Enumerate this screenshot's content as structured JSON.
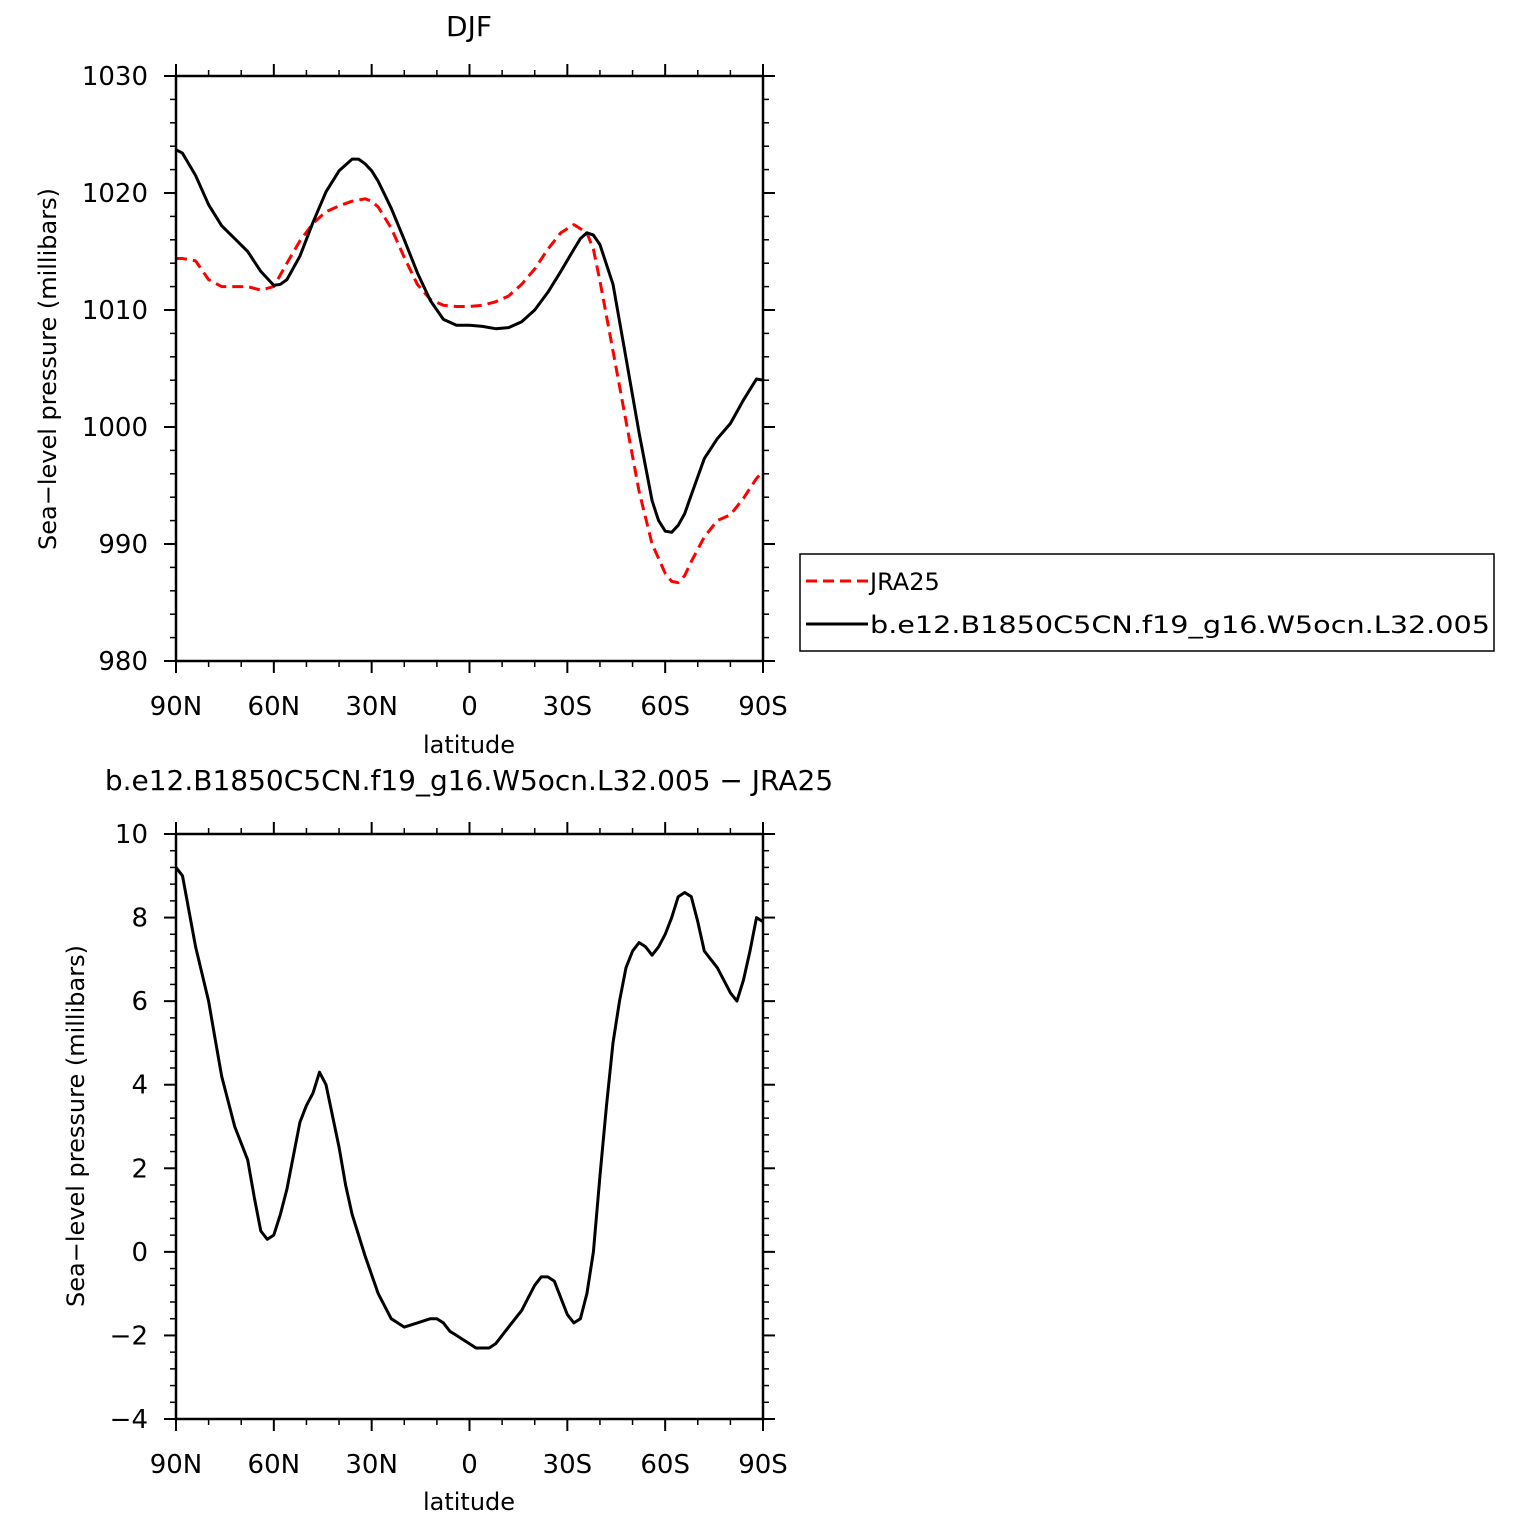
{
  "chart_data": [
    {
      "type": "line",
      "title": "DJF",
      "xlabel": "latitude",
      "ylabel": "Sea−level pressure (millibars)",
      "x_tick_values": [
        90,
        60,
        30,
        0,
        -30,
        -60,
        -90
      ],
      "x_tick_labels": [
        "90N",
        "60N",
        "30N",
        "0",
        "30S",
        "60S",
        "90S"
      ],
      "xlim": [
        90,
        -90
      ],
      "ylim": [
        980,
        1030
      ],
      "y_tick_values": [
        980,
        990,
        1000,
        1010,
        1020,
        1030
      ],
      "y_tick_labels": [
        "980",
        "990",
        "1000",
        "1010",
        "1020",
        "1030"
      ],
      "grid": false,
      "legend_position": "right-outside",
      "series": [
        {
          "name": "JRA25",
          "color": "#ff0000",
          "dash": "dashed",
          "x": [
            90,
            88,
            84,
            80,
            76,
            72,
            68,
            64,
            60,
            56,
            52,
            48,
            44,
            40,
            36,
            32,
            30,
            28,
            24,
            20,
            16,
            12,
            8,
            4,
            0,
            -4,
            -8,
            -12,
            -16,
            -20,
            -24,
            -28,
            -32,
            -36,
            -38,
            -40,
            -44,
            -48,
            -52,
            -56,
            -60,
            -62,
            -64,
            -66,
            -68,
            -72,
            -76,
            -80,
            -84,
            -88,
            -90
          ],
          "y": [
            1014.4,
            1014.4,
            1014.2,
            1012.6,
            1012.0,
            1012.0,
            1012.0,
            1011.7,
            1012.0,
            1014.0,
            1015.9,
            1017.4,
            1018.4,
            1018.9,
            1019.3,
            1019.5,
            1019.3,
            1018.8,
            1017.0,
            1014.5,
            1012.2,
            1010.9,
            1010.4,
            1010.3,
            1010.3,
            1010.4,
            1010.7,
            1011.2,
            1012.2,
            1013.5,
            1015.2,
            1016.6,
            1017.3,
            1016.6,
            1015.2,
            1012.5,
            1006.5,
            1000.5,
            994.5,
            990.0,
            987.5,
            986.8,
            986.7,
            987.3,
            988.5,
            990.6,
            992.0,
            992.5,
            993.9,
            995.6,
            996.2
          ]
        },
        {
          "name": "b.e12.B1850C5CN.f19_g16.W5ocn.L32.005",
          "color": "#000000",
          "dash": "solid",
          "x": [
            90,
            88,
            84,
            80,
            76,
            72,
            68,
            64,
            60,
            58,
            56,
            52,
            48,
            44,
            40,
            36,
            34,
            32,
            30,
            28,
            24,
            20,
            16,
            12,
            8,
            4,
            0,
            -4,
            -8,
            -12,
            -16,
            -20,
            -24,
            -28,
            -32,
            -34,
            -36,
            -38,
            -40,
            -44,
            -48,
            -52,
            -56,
            -58,
            -60,
            -62,
            -64,
            -66,
            -68,
            -72,
            -76,
            -80,
            -84,
            -88,
            -90
          ],
          "y": [
            1023.7,
            1023.4,
            1021.5,
            1019.0,
            1017.2,
            1016.1,
            1015.0,
            1013.3,
            1012.1,
            1012.2,
            1012.6,
            1014.6,
            1017.5,
            1020.1,
            1021.9,
            1022.9,
            1022.9,
            1022.5,
            1021.9,
            1021.0,
            1018.7,
            1016.0,
            1013.2,
            1010.8,
            1009.2,
            1008.7,
            1008.7,
            1008.6,
            1008.4,
            1008.5,
            1009.0,
            1010.0,
            1011.5,
            1013.3,
            1015.2,
            1016.1,
            1016.6,
            1016.4,
            1015.6,
            1012.2,
            1005.9,
            999.5,
            993.7,
            992.0,
            991.1,
            991.0,
            991.6,
            992.6,
            994.2,
            997.3,
            999.0,
            1000.3,
            1002.3,
            1004.1,
            1004.0
          ]
        }
      ]
    },
    {
      "type": "line",
      "title": "b.e12.B1850C5CN.f19_g16.W5ocn.L32.005 − JRA25",
      "xlabel": "latitude",
      "ylabel": "Sea−level pressure (millibars)",
      "x_tick_values": [
        90,
        60,
        30,
        0,
        -30,
        -60,
        -90
      ],
      "x_tick_labels": [
        "90N",
        "60N",
        "30N",
        "0",
        "30S",
        "60S",
        "90S"
      ],
      "xlim": [
        90,
        -90
      ],
      "ylim": [
        -4,
        10
      ],
      "y_tick_values": [
        -4,
        -2,
        0,
        2,
        4,
        6,
        8,
        10
      ],
      "y_tick_labels": [
        "−4",
        "−2",
        "0",
        "2",
        "4",
        "6",
        "8",
        "10"
      ],
      "grid": false,
      "series": [
        {
          "name": "",
          "color": "#000000",
          "dash": "solid",
          "x": [
            90,
            88,
            84,
            80,
            78,
            76,
            72,
            68,
            66,
            64,
            62,
            60,
            58,
            56,
            54,
            52,
            50,
            48,
            46,
            44,
            40,
            38,
            36,
            32,
            28,
            24,
            20,
            16,
            12,
            10,
            8,
            6,
            4,
            2,
            0,
            -2,
            -4,
            -6,
            -8,
            -10,
            -12,
            -14,
            -16,
            -18,
            -20,
            -22,
            -24,
            -26,
            -28,
            -30,
            -32,
            -34,
            -36,
            -38,
            -40,
            -42,
            -44,
            -46,
            -48,
            -50,
            -52,
            -54,
            -56,
            -58,
            -60,
            -62,
            -64,
            -66,
            -68,
            -70,
            -72,
            -74,
            -76,
            -78,
            -80,
            -82,
            -84,
            -86,
            -88,
            -90
          ],
          "y": [
            9.2,
            9.0,
            7.3,
            6.0,
            5.1,
            4.2,
            3.0,
            2.2,
            1.3,
            0.5,
            0.3,
            0.4,
            0.9,
            1.5,
            2.3,
            3.1,
            3.5,
            3.8,
            4.3,
            4.0,
            2.5,
            1.6,
            0.9,
            -0.1,
            -1.0,
            -1.6,
            -1.8,
            -1.7,
            -1.6,
            -1.6,
            -1.7,
            -1.9,
            -2.0,
            -2.1,
            -2.2,
            -2.3,
            -2.3,
            -2.3,
            -2.2,
            -2.0,
            -1.8,
            -1.6,
            -1.4,
            -1.1,
            -0.8,
            -0.6,
            -0.6,
            -0.7,
            -1.1,
            -1.5,
            -1.7,
            -1.6,
            -1.0,
            0.0,
            1.8,
            3.5,
            5.0,
            6.0,
            6.8,
            7.2,
            7.4,
            7.3,
            7.1,
            7.3,
            7.6,
            8.0,
            8.5,
            8.6,
            8.5,
            7.9,
            7.2,
            7.0,
            6.8,
            6.5,
            6.2,
            6.0,
            6.5,
            7.2,
            8.0,
            7.9
          ]
        }
      ]
    }
  ]
}
